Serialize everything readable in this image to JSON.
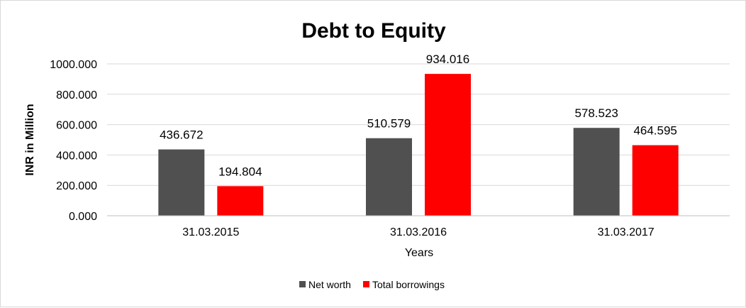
{
  "chart_data": {
    "type": "bar",
    "title": "Debt to Equity",
    "xlabel": "Years",
    "ylabel": "INR in Million",
    "categories": [
      "31.03.2015",
      "31.03.2016",
      "31.03.2017"
    ],
    "series": [
      {
        "name": "Net worth",
        "color": "#505050",
        "values": [
          436.672,
          510.579,
          578.523
        ],
        "labels": [
          "436.672",
          "510.579",
          "578.523"
        ]
      },
      {
        "name": "Total borrowings",
        "color": "#ff0000",
        "values": [
          194.804,
          934.016,
          464.595
        ],
        "labels": [
          "194.804",
          "934.016",
          "464.595"
        ]
      }
    ],
    "ylim": [
      0,
      1000
    ],
    "yticks": [
      0,
      200,
      400,
      600,
      800,
      1000
    ],
    "ytick_labels": [
      "0.000",
      "200.000",
      "400.000",
      "600.000",
      "800.000",
      "1000.000"
    ],
    "grid": true,
    "legend_position": "bottom"
  }
}
